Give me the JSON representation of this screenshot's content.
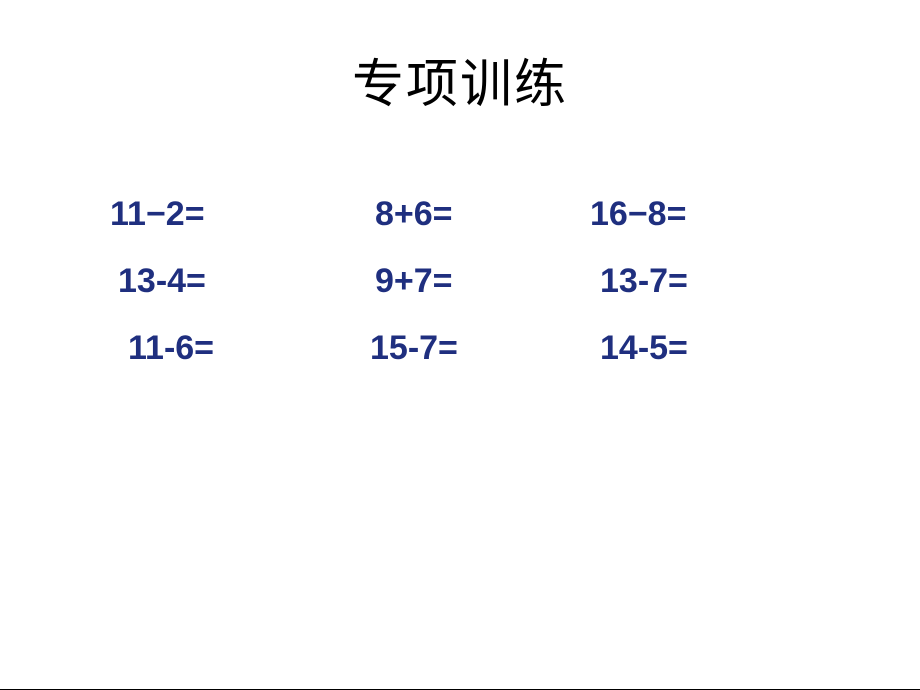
{
  "slide": {
    "title": "专项训练",
    "title_color": "#000000",
    "title_fontsize": 52,
    "background_color": "#ffffff",
    "problem_color": "#1f2f7f",
    "problem_fontsize": 34,
    "problem_fontweight": "bold",
    "problems": {
      "rows": [
        {
          "cells": [
            "11−2=",
            "8+6=",
            "16−8="
          ]
        },
        {
          "cells": [
            "13-4=",
            "9+7=",
            "13-7="
          ]
        },
        {
          "cells": [
            "11-6=",
            "15-7=",
            "14-5="
          ]
        }
      ]
    }
  }
}
